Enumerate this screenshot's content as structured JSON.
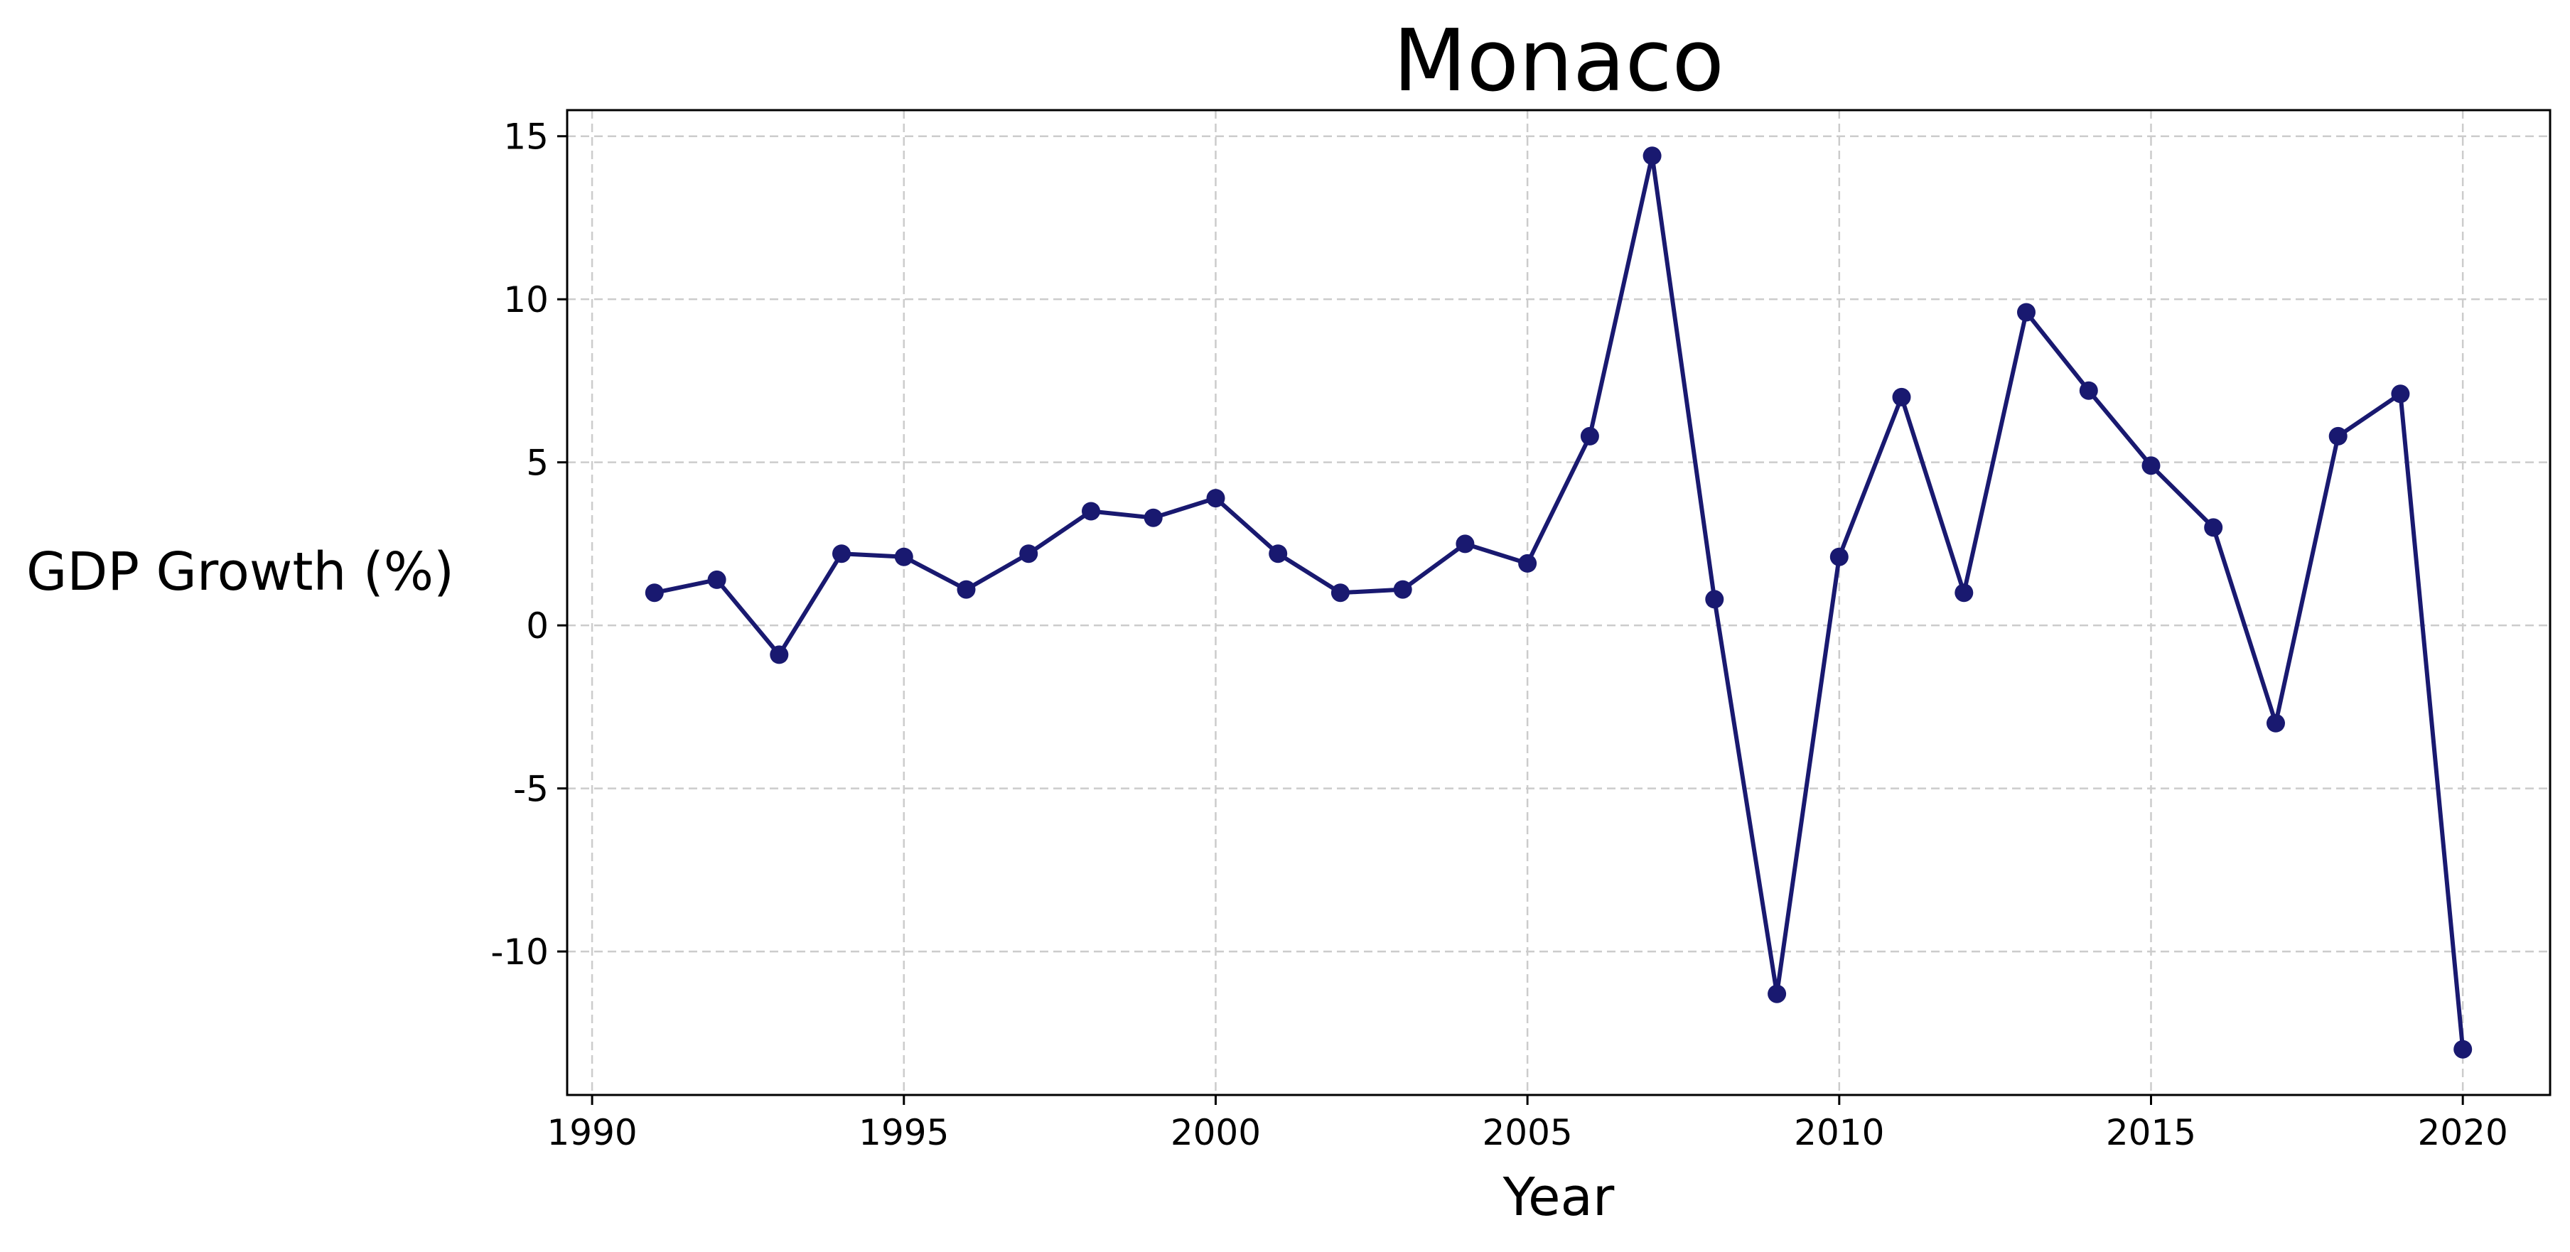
{
  "chart_data": {
    "type": "line",
    "title": "Monaco",
    "xlabel": "Year",
    "ylabel": "GDP Growth (%)",
    "xlim": [
      1989.6,
      2021.4
    ],
    "ylim": [
      -14.4,
      15.8
    ],
    "xticks": [
      1990,
      1995,
      2000,
      2005,
      2010,
      2015,
      2020
    ],
    "yticks": [
      15,
      10,
      5,
      0,
      -5,
      -10
    ],
    "ytick_labels": [
      "15",
      "10",
      "5",
      "0",
      "-5",
      "-10"
    ],
    "grid": true,
    "color": "#191970",
    "series": [
      {
        "x": [
          1991,
          1992,
          1993,
          1994,
          1995,
          1996,
          1997,
          1998,
          1999,
          2000,
          2001,
          2002,
          2003,
          2004,
          2005,
          2006,
          2007,
          2008,
          2009,
          2010,
          2011,
          2012,
          2013,
          2014,
          2015,
          2016,
          2017,
          2018,
          2019,
          2020
        ],
        "values": [
          1.0,
          1.4,
          -0.9,
          2.2,
          2.1,
          1.1,
          2.2,
          3.5,
          3.3,
          3.9,
          2.2,
          1.0,
          1.1,
          2.5,
          1.9,
          5.8,
          14.4,
          0.8,
          -11.3,
          2.1,
          7.0,
          1.0,
          9.6,
          7.2,
          4.9,
          3.0,
          -3.0,
          5.8,
          7.1,
          -13.0
        ]
      }
    ]
  }
}
